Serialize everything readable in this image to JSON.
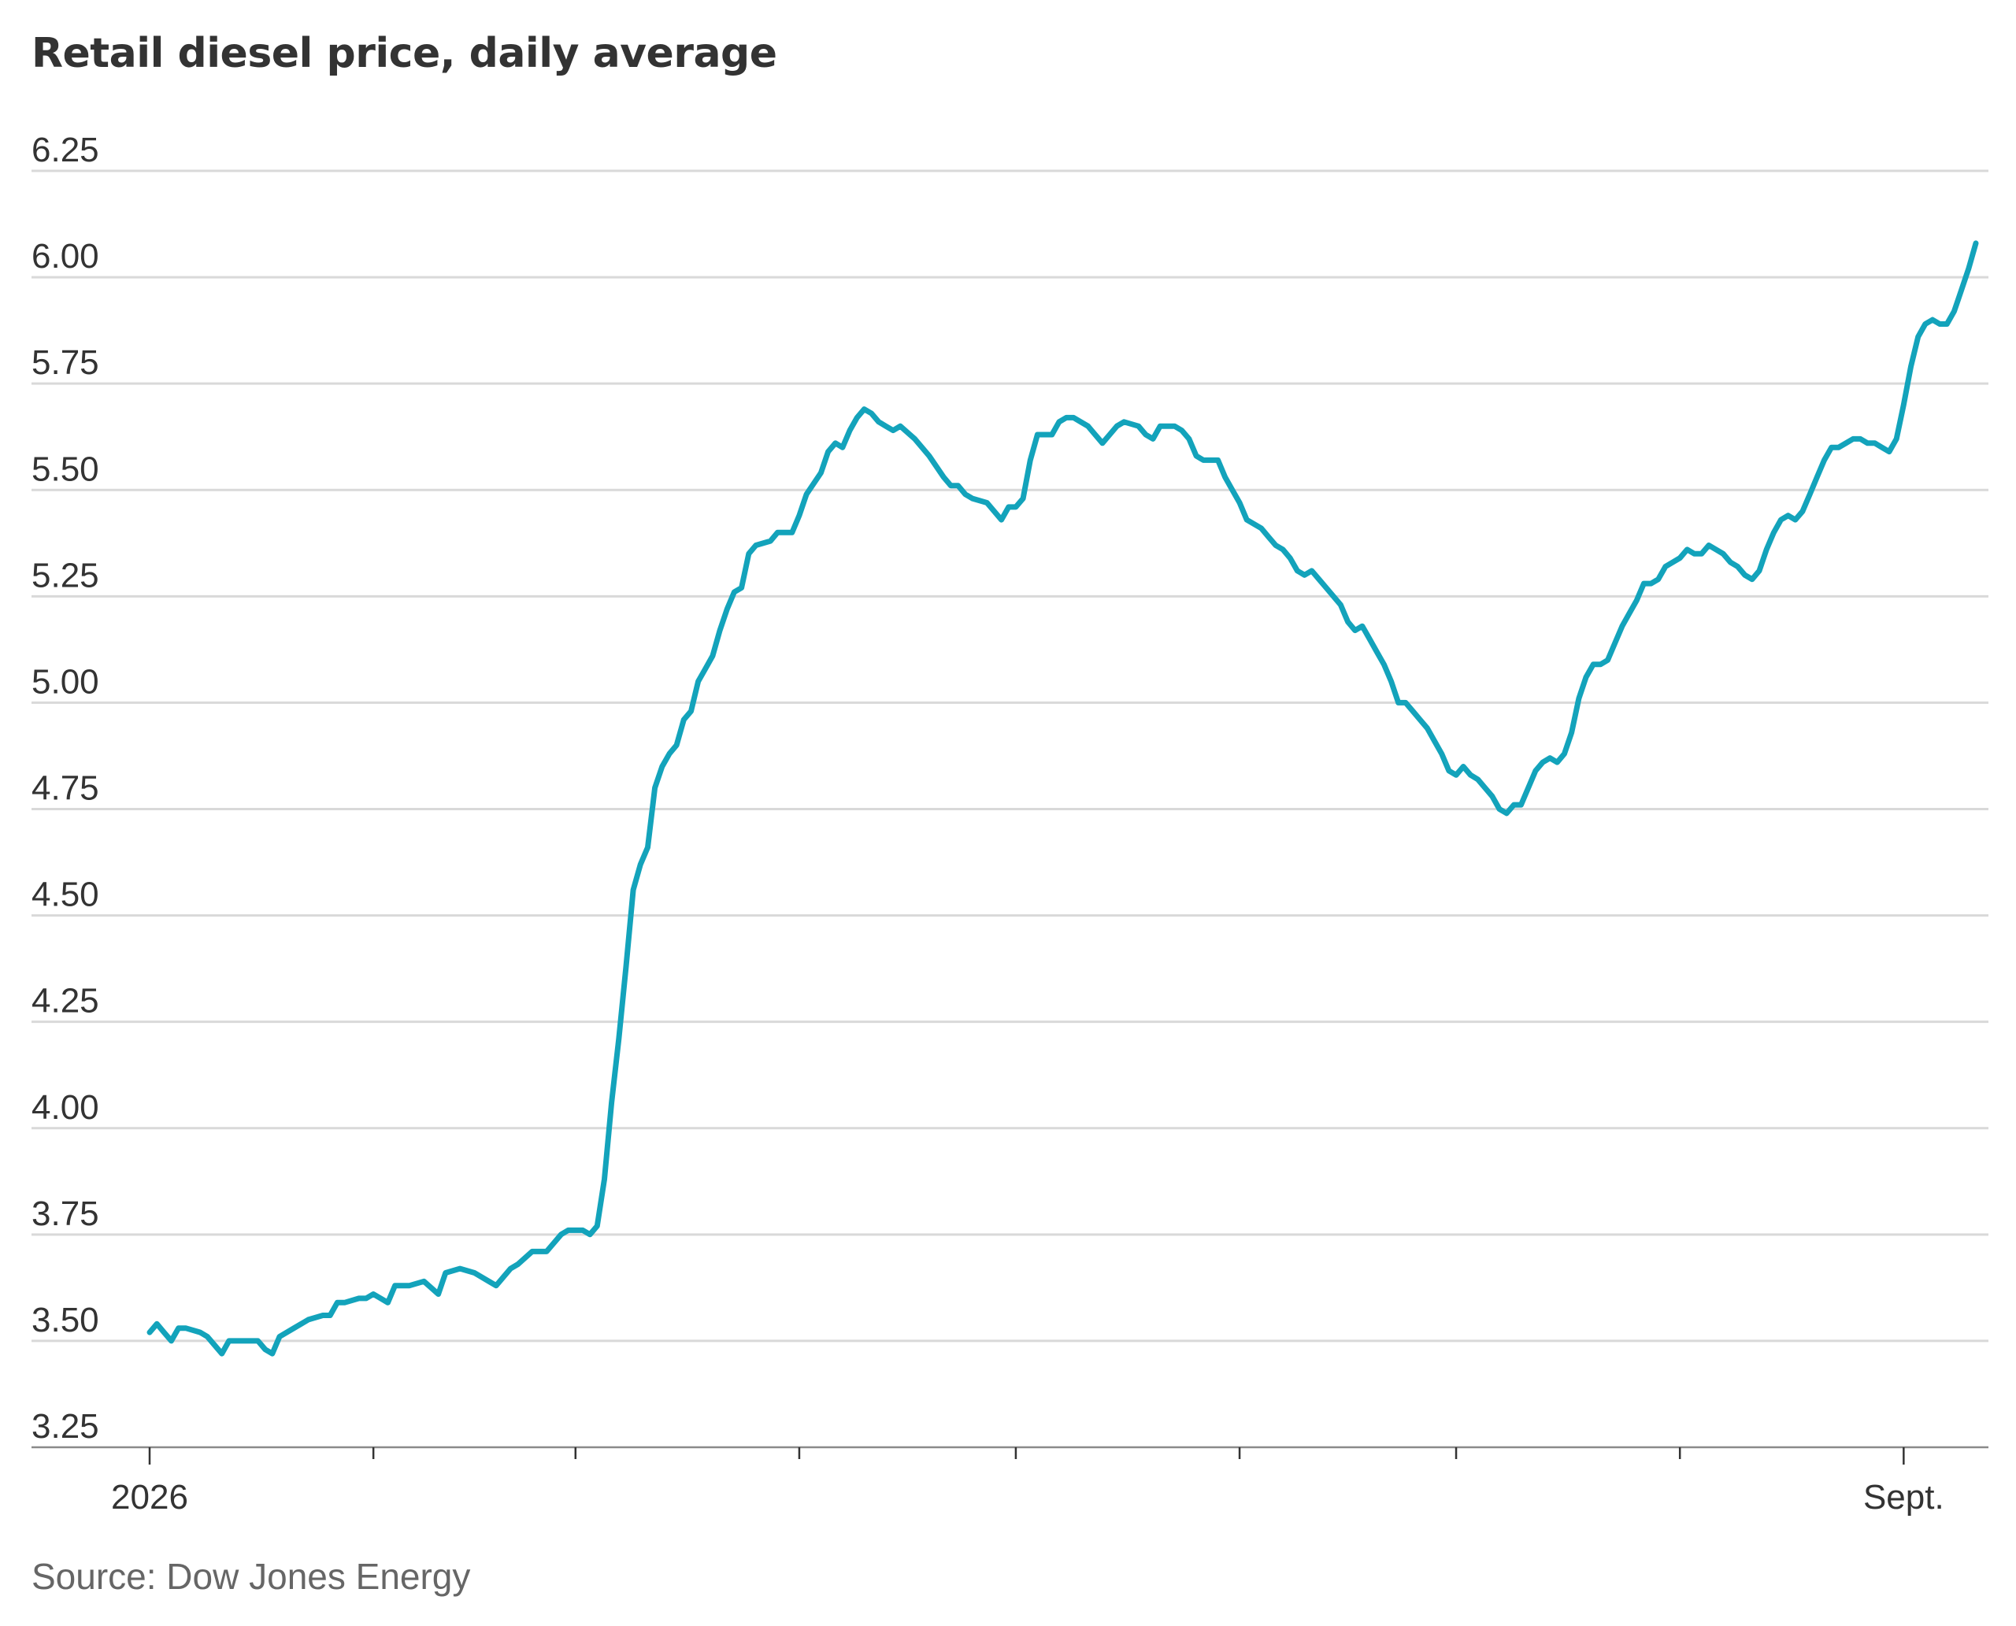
{
  "chart_data": {
    "type": "line",
    "title": "Retail diesel price, daily average",
    "source": "Source: Dow Jones Energy",
    "xlabel": "",
    "ylabel": "",
    "ylim": [
      3.25,
      6.25
    ],
    "yticks": [
      "3.25",
      "3.50",
      "3.75",
      "4.00",
      "4.25",
      "4.50",
      "4.75",
      "5.00",
      "5.25",
      "5.50",
      "5.75",
      "6.00",
      "6.25"
    ],
    "xlim": [
      0,
      253
    ],
    "xticks": [
      {
        "x": 0,
        "label": "2026"
      },
      {
        "x": 31,
        "label": ""
      },
      {
        "x": 59,
        "label": ""
      },
      {
        "x": 90,
        "label": ""
      },
      {
        "x": 120,
        "label": ""
      },
      {
        "x": 151,
        "label": ""
      },
      {
        "x": 181,
        "label": ""
      },
      {
        "x": 212,
        "label": ""
      },
      {
        "x": 243,
        "label": "Sept."
      }
    ],
    "grid": true,
    "line_color": "#13a3bb",
    "series": [
      {
        "name": "",
        "values": [
          [
            0,
            3.52
          ],
          [
            1,
            3.54
          ],
          [
            2,
            3.52
          ],
          [
            3,
            3.5
          ],
          [
            4,
            3.53
          ],
          [
            5,
            3.53
          ],
          [
            7,
            3.52
          ],
          [
            8,
            3.51
          ],
          [
            9,
            3.49
          ],
          [
            10,
            3.47
          ],
          [
            11,
            3.5
          ],
          [
            13,
            3.5
          ],
          [
            15,
            3.5
          ],
          [
            16,
            3.48
          ],
          [
            17,
            3.47
          ],
          [
            18,
            3.51
          ],
          [
            20,
            3.53
          ],
          [
            22,
            3.55
          ],
          [
            24,
            3.56
          ],
          [
            25,
            3.56
          ],
          [
            26,
            3.59
          ],
          [
            27,
            3.59
          ],
          [
            29,
            3.6
          ],
          [
            30,
            3.6
          ],
          [
            31,
            3.61
          ],
          [
            32,
            3.6
          ],
          [
            33,
            3.59
          ],
          [
            34,
            3.63
          ],
          [
            36,
            3.63
          ],
          [
            38,
            3.64
          ],
          [
            40,
            3.61
          ],
          [
            41,
            3.66
          ],
          [
            43,
            3.67
          ],
          [
            45,
            3.66
          ],
          [
            47,
            3.64
          ],
          [
            48,
            3.63
          ],
          [
            50,
            3.67
          ],
          [
            51,
            3.68
          ],
          [
            53,
            3.71
          ],
          [
            55,
            3.71
          ],
          [
            56,
            3.73
          ],
          [
            57,
            3.75
          ],
          [
            58,
            3.76
          ],
          [
            59,
            3.76
          ],
          [
            60,
            3.76
          ],
          [
            61,
            3.75
          ],
          [
            62,
            3.77
          ],
          [
            63,
            3.88
          ],
          [
            64,
            4.06
          ],
          [
            65,
            4.21
          ],
          [
            66,
            4.38
          ],
          [
            67,
            4.56
          ],
          [
            68,
            4.62
          ],
          [
            69,
            4.66
          ],
          [
            70,
            4.8
          ],
          [
            71,
            4.85
          ],
          [
            72,
            4.88
          ],
          [
            73,
            4.9
          ],
          [
            74,
            4.96
          ],
          [
            75,
            4.98
          ],
          [
            76,
            5.05
          ],
          [
            77,
            5.08
          ],
          [
            78,
            5.11
          ],
          [
            79,
            5.17
          ],
          [
            80,
            5.22
          ],
          [
            81,
            5.26
          ],
          [
            82,
            5.27
          ],
          [
            83,
            5.35
          ],
          [
            84,
            5.37
          ],
          [
            86,
            5.38
          ],
          [
            87,
            5.4
          ],
          [
            89,
            5.4
          ],
          [
            90,
            5.44
          ],
          [
            91,
            5.49
          ],
          [
            93,
            5.54
          ],
          [
            94,
            5.59
          ],
          [
            95,
            5.61
          ],
          [
            96,
            5.6
          ],
          [
            97,
            5.64
          ],
          [
            98,
            5.67
          ],
          [
            99,
            5.69
          ],
          [
            100,
            5.68
          ],
          [
            101,
            5.66
          ],
          [
            102,
            5.65
          ],
          [
            103,
            5.64
          ],
          [
            104,
            5.65
          ],
          [
            106,
            5.62
          ],
          [
            108,
            5.58
          ],
          [
            110,
            5.53
          ],
          [
            111,
            5.51
          ],
          [
            112,
            5.51
          ],
          [
            113,
            5.49
          ],
          [
            114,
            5.48
          ],
          [
            116,
            5.47
          ],
          [
            117,
            5.45
          ],
          [
            118,
            5.43
          ],
          [
            119,
            5.46
          ],
          [
            120,
            5.46
          ],
          [
            121,
            5.48
          ],
          [
            122,
            5.57
          ],
          [
            123,
            5.63
          ],
          [
            125,
            5.63
          ],
          [
            126,
            5.66
          ],
          [
            127,
            5.67
          ],
          [
            128,
            5.67
          ],
          [
            129,
            5.66
          ],
          [
            130,
            5.65
          ],
          [
            131,
            5.63
          ],
          [
            132,
            5.61
          ],
          [
            133,
            5.63
          ],
          [
            134,
            5.65
          ],
          [
            135,
            5.66
          ],
          [
            137,
            5.65
          ],
          [
            138,
            5.63
          ],
          [
            139,
            5.62
          ],
          [
            140,
            5.65
          ],
          [
            142,
            5.65
          ],
          [
            143,
            5.64
          ],
          [
            144,
            5.62
          ],
          [
            145,
            5.58
          ],
          [
            146,
            5.57
          ],
          [
            147,
            5.57
          ],
          [
            148,
            5.57
          ],
          [
            149,
            5.53
          ],
          [
            150,
            5.5
          ],
          [
            151,
            5.47
          ],
          [
            152,
            5.43
          ],
          [
            153,
            5.42
          ],
          [
            154,
            5.41
          ],
          [
            155,
            5.39
          ],
          [
            156,
            5.37
          ],
          [
            157,
            5.36
          ],
          [
            158,
            5.34
          ],
          [
            159,
            5.31
          ],
          [
            160,
            5.3
          ],
          [
            161,
            5.31
          ],
          [
            162,
            5.29
          ],
          [
            163,
            5.27
          ],
          [
            164,
            5.25
          ],
          [
            165,
            5.23
          ],
          [
            166,
            5.19
          ],
          [
            167,
            5.17
          ],
          [
            168,
            5.18
          ],
          [
            169,
            5.15
          ],
          [
            170,
            5.12
          ],
          [
            171,
            5.09
          ],
          [
            172,
            5.05
          ],
          [
            173,
            5.0
          ],
          [
            174,
            5.0
          ],
          [
            175,
            4.98
          ],
          [
            176,
            4.96
          ],
          [
            177,
            4.94
          ],
          [
            178,
            4.91
          ],
          [
            179,
            4.88
          ],
          [
            180,
            4.84
          ],
          [
            181,
            4.83
          ],
          [
            182,
            4.85
          ],
          [
            183,
            4.83
          ],
          [
            184,
            4.82
          ],
          [
            185,
            4.8
          ],
          [
            186,
            4.78
          ],
          [
            187,
            4.75
          ],
          [
            188,
            4.74
          ],
          [
            189,
            4.76
          ],
          [
            190,
            4.76
          ],
          [
            191,
            4.8
          ],
          [
            192,
            4.84
          ],
          [
            193,
            4.86
          ],
          [
            194,
            4.87
          ],
          [
            195,
            4.86
          ],
          [
            196,
            4.88
          ],
          [
            197,
            4.93
          ],
          [
            198,
            5.01
          ],
          [
            199,
            5.06
          ],
          [
            200,
            5.09
          ],
          [
            201,
            5.09
          ],
          [
            202,
            5.1
          ],
          [
            203,
            5.14
          ],
          [
            204,
            5.18
          ],
          [
            205,
            5.21
          ],
          [
            206,
            5.24
          ],
          [
            207,
            5.28
          ],
          [
            208,
            5.28
          ],
          [
            209,
            5.29
          ],
          [
            210,
            5.32
          ],
          [
            211,
            5.33
          ],
          [
            212,
            5.34
          ],
          [
            213,
            5.36
          ],
          [
            214,
            5.35
          ],
          [
            215,
            5.35
          ],
          [
            216,
            5.37
          ],
          [
            217,
            5.36
          ],
          [
            218,
            5.35
          ],
          [
            219,
            5.33
          ],
          [
            220,
            5.32
          ],
          [
            221,
            5.3
          ],
          [
            222,
            5.29
          ],
          [
            223,
            5.31
          ],
          [
            224,
            5.36
          ],
          [
            225,
            5.4
          ],
          [
            226,
            5.43
          ],
          [
            227,
            5.44
          ],
          [
            228,
            5.43
          ],
          [
            229,
            5.45
          ],
          [
            230,
            5.49
          ],
          [
            231,
            5.53
          ],
          [
            232,
            5.57
          ],
          [
            233,
            5.6
          ],
          [
            234,
            5.6
          ],
          [
            235,
            5.61
          ],
          [
            236,
            5.62
          ],
          [
            237,
            5.62
          ],
          [
            238,
            5.61
          ],
          [
            239,
            5.61
          ],
          [
            240,
            5.6
          ],
          [
            241,
            5.59
          ],
          [
            242,
            5.62
          ],
          [
            243,
            5.7
          ],
          [
            244,
            5.79
          ],
          [
            245,
            5.86
          ],
          [
            246,
            5.89
          ],
          [
            247,
            5.9
          ],
          [
            248,
            5.89
          ],
          [
            249,
            5.89
          ],
          [
            250,
            5.92
          ],
          [
            251,
            5.97
          ],
          [
            252,
            6.02
          ],
          [
            253,
            6.08
          ]
        ]
      }
    ]
  }
}
